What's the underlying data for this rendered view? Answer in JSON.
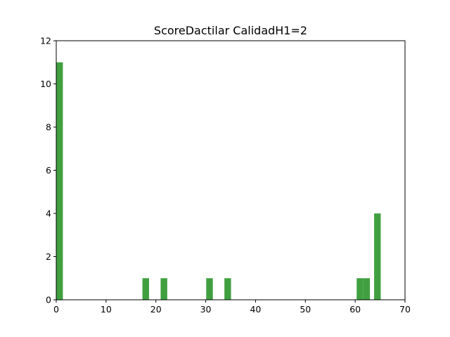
{
  "chart_data": {
    "type": "bar",
    "title": "ScoreDactilar CalidadH1=2",
    "xlabel": "",
    "ylabel": "",
    "xlim": [
      0,
      70
    ],
    "ylim": [
      0,
      12
    ],
    "xticks": [
      0,
      10,
      20,
      30,
      40,
      50,
      60,
      70
    ],
    "yticks": [
      0,
      2,
      4,
      6,
      8,
      10,
      12
    ],
    "bar_color": "#40a040",
    "grid": false,
    "bins": [
      {
        "x0": 0.0,
        "x1": 1.33,
        "count": 11
      },
      {
        "x0": 17.3,
        "x1": 18.63,
        "count": 1
      },
      {
        "x0": 20.95,
        "x1": 22.28,
        "count": 1
      },
      {
        "x0": 30.1,
        "x1": 31.43,
        "count": 1
      },
      {
        "x0": 33.75,
        "x1": 35.08,
        "count": 1
      },
      {
        "x0": 60.3,
        "x1": 61.63,
        "count": 1
      },
      {
        "x0": 61.63,
        "x1": 62.96,
        "count": 1
      },
      {
        "x0": 63.8,
        "x1": 65.13,
        "count": 4
      }
    ]
  }
}
